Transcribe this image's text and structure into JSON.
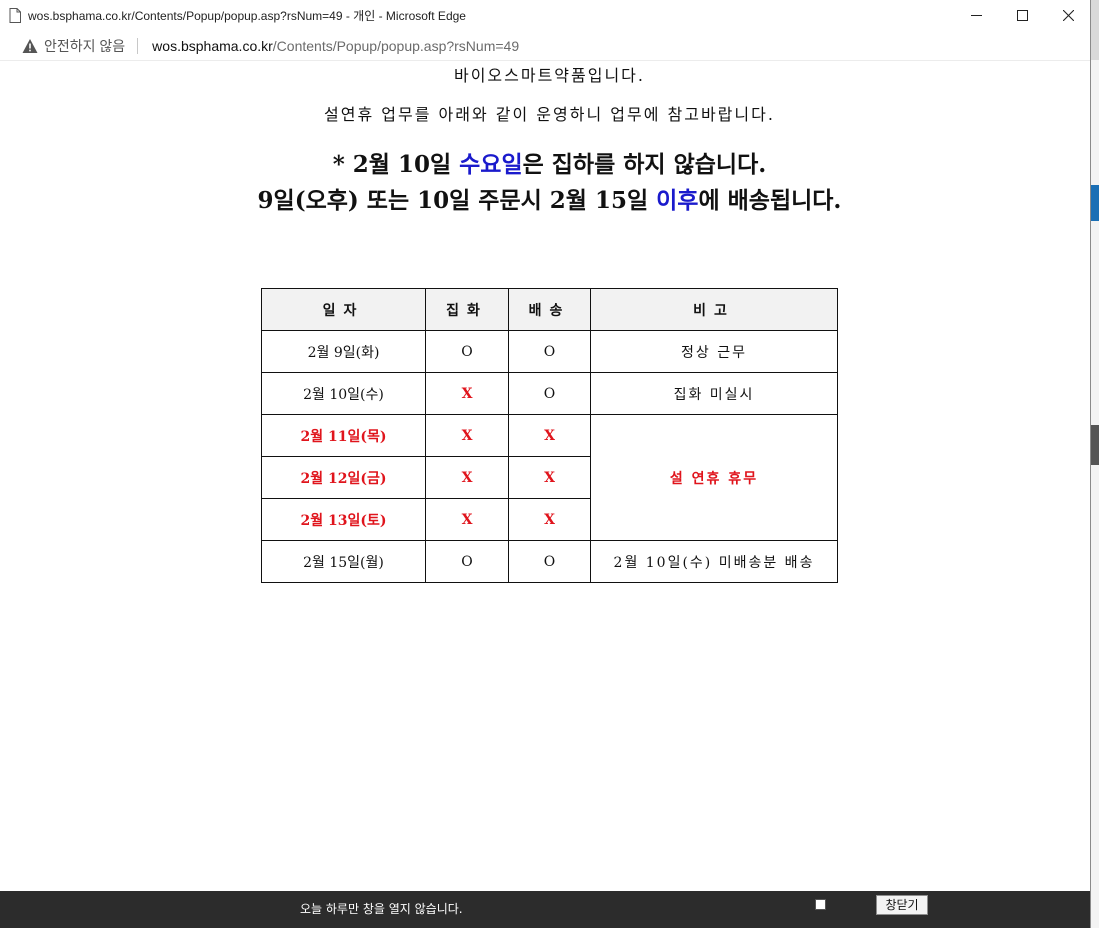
{
  "window": {
    "title": "wos.bsphama.co.kr/Contents/Popup/popup.asp?rsNum=49 - 개인 - Microsoft Edge",
    "minimize_symbol": "─",
    "maximize_symbol": "☐",
    "close_symbol": "✕"
  },
  "address_bar": {
    "security_label": "안전하지 않음",
    "url_host": "wos.bsphama.co.kr",
    "url_path": "/Contents/Popup/popup.asp?rsNum=49"
  },
  "notice": {
    "clipped_line": "바이오스마트약품입니다.",
    "intro_line": "설연휴 업무를 아래와 같이 운영하니 업무에 참고바랍니다.",
    "headline1_prefix": "* 2월 10일 ",
    "headline1_blue": "수요일",
    "headline1_suffix": "은 집하를 하지 않습니다.",
    "headline2_prefix": "9일(오후) 또는 10일 주문시 2월 15일 ",
    "headline2_blue": "이후",
    "headline2_suffix": "에 배송됩니다."
  },
  "table": {
    "headers": [
      "일자",
      "집화",
      "배송",
      "비고"
    ],
    "rows": [
      {
        "date": "2월 9일(화)",
        "pickup": "O",
        "delivery": "O",
        "note": "정상 근무"
      },
      {
        "date": "2월 10일(수)",
        "pickup": "X",
        "delivery": "O",
        "note": "집화 미실시"
      },
      {
        "date": "2월 11일(목)",
        "pickup": "X",
        "delivery": "X",
        "note": "설 연휴 휴무"
      },
      {
        "date": "2월 12일(금)",
        "pickup": "X",
        "delivery": "X"
      },
      {
        "date": "2월 13일(토)",
        "pickup": "X",
        "delivery": "X"
      },
      {
        "date": "2월 15일(월)",
        "pickup": "O",
        "delivery": "O",
        "note": "2월 10일(수) 미배송분 배송"
      }
    ]
  },
  "footer": {
    "dismiss_text": "오늘 하루만 창을 열지 않습니다.",
    "close_button": "창닫기"
  },
  "colors": {
    "accent_blue": "#1a1acc",
    "alert_red": "#e0141c",
    "footer_bg": "#2c2c2c"
  }
}
